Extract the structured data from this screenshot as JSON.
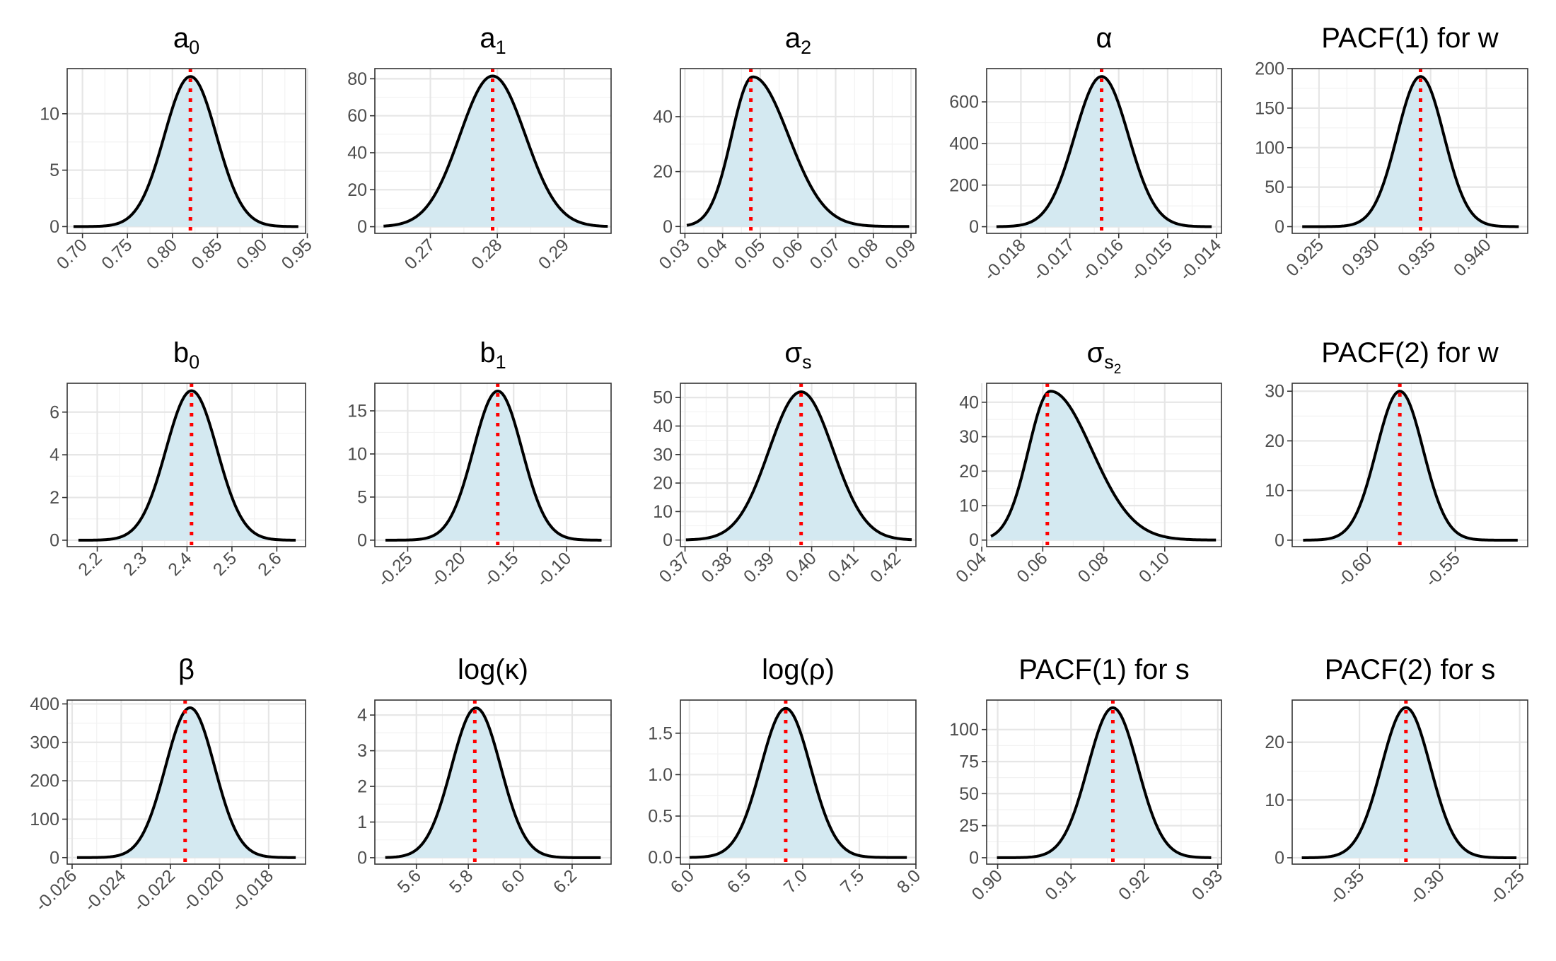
{
  "colors": {
    "fill": "#d4e9f1",
    "curve": "#000000",
    "marker": "#ff0000",
    "grid": "#e6e6e6",
    "border": "#333333",
    "tick_text": "#4d4d4d"
  },
  "chart_data": [
    {
      "type": "area",
      "title": "a",
      "title_sub": "0",
      "peak_x": 0.82,
      "peak_y": 13.3,
      "sd_left": 0.029,
      "sd_right": 0.029,
      "xlim": [
        0.683,
        0.948
      ],
      "ylim": [
        -0.6,
        14.0
      ],
      "x_ticks": [
        0.7,
        0.75,
        0.8,
        0.85,
        0.9,
        0.95
      ],
      "x_tick_labels": [
        "0.70",
        "0.75",
        "0.80",
        "0.85",
        "0.90",
        "0.95"
      ],
      "y_ticks": [
        0,
        5,
        10
      ],
      "y_tick_labels": [
        "0",
        "5",
        "10"
      ],
      "curve_range": [
        0.69,
        0.94
      ],
      "marker_x": 0.82
    },
    {
      "type": "area",
      "title": "a",
      "title_sub": "1",
      "peak_x": 0.2793,
      "peak_y": 81.5,
      "sd_left": 0.0049,
      "sd_right": 0.0049,
      "xlim": [
        0.2617,
        0.297
      ],
      "ylim": [
        -3.6,
        85.5
      ],
      "x_ticks": [
        0.27,
        0.28,
        0.29
      ],
      "x_tick_labels": [
        "0.27",
        "0.28",
        "0.29"
      ],
      "y_ticks": [
        0,
        20,
        40,
        60,
        80
      ],
      "y_tick_labels": [
        "0",
        "20",
        "40",
        "60",
        "80"
      ],
      "curve_range": [
        0.263,
        0.2965
      ],
      "marker_x": 0.2793
    },
    {
      "type": "area",
      "title": "a",
      "title_sub": "2",
      "peak_x": 0.048,
      "peak_y": 54.5,
      "sd_left": 0.0056,
      "sd_right": 0.0095,
      "xlim": [
        0.0288,
        0.0913
      ],
      "ylim": [
        -2.5,
        57.5
      ],
      "x_ticks": [
        0.03,
        0.04,
        0.05,
        0.06,
        0.07,
        0.08,
        0.09
      ],
      "x_tick_labels": [
        "0.03",
        "0.04",
        "0.05",
        "0.06",
        "0.07",
        "0.08",
        "0.09"
      ],
      "y_ticks": [
        0,
        20,
        40
      ],
      "y_tick_labels": [
        "0",
        "20",
        "40"
      ],
      "curve_range": [
        0.0305,
        0.0895
      ],
      "marker_x": 0.0475
    },
    {
      "type": "area",
      "title": "α",
      "title_sub": "",
      "peak_x": -0.01635,
      "peak_y": 722,
      "sd_left": 0.00055,
      "sd_right": 0.00055,
      "xlim": [
        -0.0187,
        -0.0139
      ],
      "ylim": [
        -32,
        760
      ],
      "x_ticks": [
        -0.018,
        -0.017,
        -0.016,
        -0.015,
        -0.014
      ],
      "x_tick_labels": [
        "-0.018",
        "-0.017",
        "-0.016",
        "-0.015",
        "-0.014"
      ],
      "y_ticks": [
        0,
        200,
        400,
        600
      ],
      "y_tick_labels": [
        "0",
        "200",
        "400",
        "600"
      ],
      "curve_range": [
        -0.0185,
        -0.0141
      ],
      "marker_x": -0.01635
    },
    {
      "type": "area",
      "title": "PACF(1) for w",
      "title_sub": "",
      "peak_x": 0.9341,
      "peak_y": 190,
      "sd_left": 0.0021,
      "sd_right": 0.0021,
      "xlim": [
        0.9226,
        0.9437
      ],
      "ylim": [
        -8.5,
        200
      ],
      "x_ticks": [
        0.925,
        0.93,
        0.935,
        0.94
      ],
      "x_tick_labels": [
        "0.925",
        "0.930",
        "0.935",
        "0.940"
      ],
      "y_ticks": [
        0,
        50,
        100,
        150,
        200
      ],
      "y_tick_labels": [
        "0",
        "50",
        "100",
        "150",
        "200"
      ],
      "curve_range": [
        0.9235,
        0.9429
      ],
      "marker_x": 0.9341
    },
    {
      "type": "area",
      "title": "b",
      "title_sub": "0",
      "peak_x": 2.41,
      "peak_y": 7.0,
      "sd_left": 0.057,
      "sd_right": 0.057,
      "xlim": [
        2.133,
        2.664
      ],
      "ylim": [
        -0.3,
        7.35
      ],
      "x_ticks": [
        2.2,
        2.3,
        2.4,
        2.5,
        2.6
      ],
      "x_tick_labels": [
        "2.2",
        "2.3",
        "2.4",
        "2.5",
        "2.6"
      ],
      "y_ticks": [
        0,
        2,
        4,
        6
      ],
      "y_tick_labels": [
        "0",
        "2",
        "4",
        "6"
      ],
      "curve_range": [
        2.158,
        2.642
      ],
      "marker_x": 2.41
    },
    {
      "type": "area",
      "title": "b",
      "title_sub": "1",
      "peak_x": -0.165,
      "peak_y": 17.3,
      "sd_left": 0.023,
      "sd_right": 0.023,
      "xlim": [
        -0.281,
        -0.058
      ],
      "ylim": [
        -0.75,
        18.2
      ],
      "x_ticks": [
        -0.25,
        -0.2,
        -0.15,
        -0.1
      ],
      "x_tick_labels": [
        "-0.25",
        "-0.20",
        "-0.15",
        "-0.10"
      ],
      "y_ticks": [
        0,
        5,
        10,
        15
      ],
      "y_tick_labels": [
        "0",
        "5",
        "10",
        "15"
      ],
      "curve_range": [
        -0.271,
        -0.067
      ],
      "marker_x": -0.165
    },
    {
      "type": "area",
      "title": "σ",
      "title_sub": "s",
      "peak_x": 0.3975,
      "peak_y": 52,
      "sd_left": 0.0076,
      "sd_right": 0.0076,
      "xlim": [
        0.3689,
        0.4247
      ],
      "ylim": [
        -2.3,
        55
      ],
      "x_ticks": [
        0.37,
        0.38,
        0.39,
        0.4,
        0.41,
        0.42
      ],
      "x_tick_labels": [
        "0.37",
        "0.38",
        "0.39",
        "0.40",
        "0.41",
        "0.42"
      ],
      "y_ticks": [
        0,
        10,
        20,
        30,
        40,
        50
      ],
      "y_tick_labels": [
        "0",
        "10",
        "20",
        "30",
        "40",
        "50"
      ],
      "curve_range": [
        0.3702,
        0.4237
      ],
      "marker_x": 0.3975
    },
    {
      "type": "area",
      "title": "σ",
      "title_sub": "s",
      "title_subsub": "2",
      "peak_x": 0.0625,
      "peak_y": 43.2,
      "sd_left": 0.0072,
      "sd_right": 0.0136,
      "xlim": [
        0.0416,
        0.1186
      ],
      "ylim": [
        -1.9,
        45.5
      ],
      "x_ticks": [
        0.04,
        0.06,
        0.08,
        0.1
      ],
      "x_tick_labels": [
        "0.04",
        "0.06",
        "0.08",
        "0.10"
      ],
      "y_ticks": [
        0,
        10,
        20,
        30,
        40
      ],
      "y_tick_labels": [
        "0",
        "10",
        "20",
        "30",
        "40"
      ],
      "curve_range": [
        0.043,
        0.1168
      ],
      "marker_x": 0.0615
    },
    {
      "type": "area",
      "title": "PACF(2) for w",
      "title_sub": "",
      "peak_x": -0.5815,
      "peak_y": 30,
      "sd_left": 0.0133,
      "sd_right": 0.0133,
      "xlim": [
        -0.6427,
        -0.5088
      ],
      "ylim": [
        -1.3,
        31.6
      ],
      "x_ticks": [
        -0.6,
        -0.55
      ],
      "x_tick_labels": [
        "-0.60",
        "-0.55"
      ],
      "y_ticks": [
        0,
        10,
        20,
        30
      ],
      "y_tick_labels": [
        "0",
        "10",
        "20",
        "30"
      ],
      "curve_range": [
        -0.6365,
        -0.5145
      ],
      "marker_x": -0.5815
    },
    {
      "type": "area",
      "title": "β",
      "title_sub": "",
      "peak_x": -0.0212,
      "peak_y": 390,
      "sd_left": 0.001,
      "sd_right": 0.001,
      "xlim": [
        -0.0262,
        -0.0165
      ],
      "ylim": [
        -17,
        410
      ],
      "x_ticks": [
        -0.026,
        -0.024,
        -0.022,
        -0.02,
        -0.018
      ],
      "x_tick_labels": [
        "-0.026",
        "-0.024",
        "-0.022",
        "-0.020",
        "-0.018"
      ],
      "y_ticks": [
        0,
        100,
        200,
        300,
        400
      ],
      "y_tick_labels": [
        "0",
        "100",
        "200",
        "300",
        "400"
      ],
      "curve_range": [
        -0.0258,
        -0.0169
      ],
      "marker_x": -0.0214
    },
    {
      "type": "area",
      "title": "log(κ)",
      "title_sub": "",
      "peak_x": 5.83,
      "peak_y": 4.2,
      "sd_left": 0.095,
      "sd_right": 0.095,
      "xlim": [
        5.44,
        6.35
      ],
      "ylim": [
        -0.18,
        4.42
      ],
      "x_ticks": [
        5.6,
        5.8,
        6.0,
        6.2
      ],
      "x_tick_labels": [
        "5.6",
        "5.8",
        "6.0",
        "6.2"
      ],
      "y_ticks": [
        0,
        1,
        2,
        3,
        4
      ],
      "y_tick_labels": [
        "0",
        "1",
        "2",
        "3",
        "4"
      ],
      "curve_range": [
        5.48,
        6.31
      ],
      "marker_x": 5.825
    },
    {
      "type": "area",
      "title": "log(ρ)",
      "title_sub": "",
      "peak_x": 6.85,
      "peak_y": 1.8,
      "sd_left": 0.22,
      "sd_right": 0.22,
      "xlim": [
        5.92,
        8.0
      ],
      "ylim": [
        -0.08,
        1.9
      ],
      "x_ticks": [
        6.0,
        6.5,
        7.0,
        7.5,
        8.0
      ],
      "x_tick_labels": [
        "6.0",
        "6.5",
        "7.0",
        "7.5",
        "8.0"
      ],
      "y_ticks": [
        0,
        0.5,
        1.0,
        1.5
      ],
      "y_tick_labels": [
        "0.0",
        "0.5",
        "1.0",
        "1.5"
      ],
      "curve_range": [
        6.0,
        7.92
      ],
      "marker_x": 6.85
    },
    {
      "type": "area",
      "title": "PACF(1) for s",
      "title_sub": "",
      "peak_x": 0.9157,
      "peak_y": 117,
      "sd_left": 0.0034,
      "sd_right": 0.0034,
      "xlim": [
        0.8985,
        0.9305
      ],
      "ylim": [
        -5,
        123
      ],
      "x_ticks": [
        0.9,
        0.91,
        0.92,
        0.93
      ],
      "x_tick_labels": [
        "0.90",
        "0.91",
        "0.92",
        "0.93"
      ],
      "y_ticks": [
        0,
        25,
        50,
        75,
        100
      ],
      "y_tick_labels": [
        "0",
        "25",
        "50",
        "75",
        "100"
      ],
      "curve_range": [
        0.8999,
        0.9291
      ],
      "marker_x": 0.9157
    },
    {
      "type": "area",
      "title": "PACF(2) for s",
      "title_sub": "",
      "peak_x": -0.321,
      "peak_y": 26,
      "sd_left": 0.0153,
      "sd_right": 0.0153,
      "xlim": [
        -0.392,
        -0.245
      ],
      "ylim": [
        -1.1,
        27.3
      ],
      "x_ticks": [
        -0.35,
        -0.3,
        -0.25
      ],
      "x_tick_labels": [
        "-0.35",
        "-0.30",
        "-0.25"
      ],
      "y_ticks": [
        0,
        10,
        20
      ],
      "y_tick_labels": [
        "0",
        "10",
        "20"
      ],
      "curve_range": [
        -0.386,
        -0.252
      ],
      "marker_x": -0.321
    }
  ]
}
